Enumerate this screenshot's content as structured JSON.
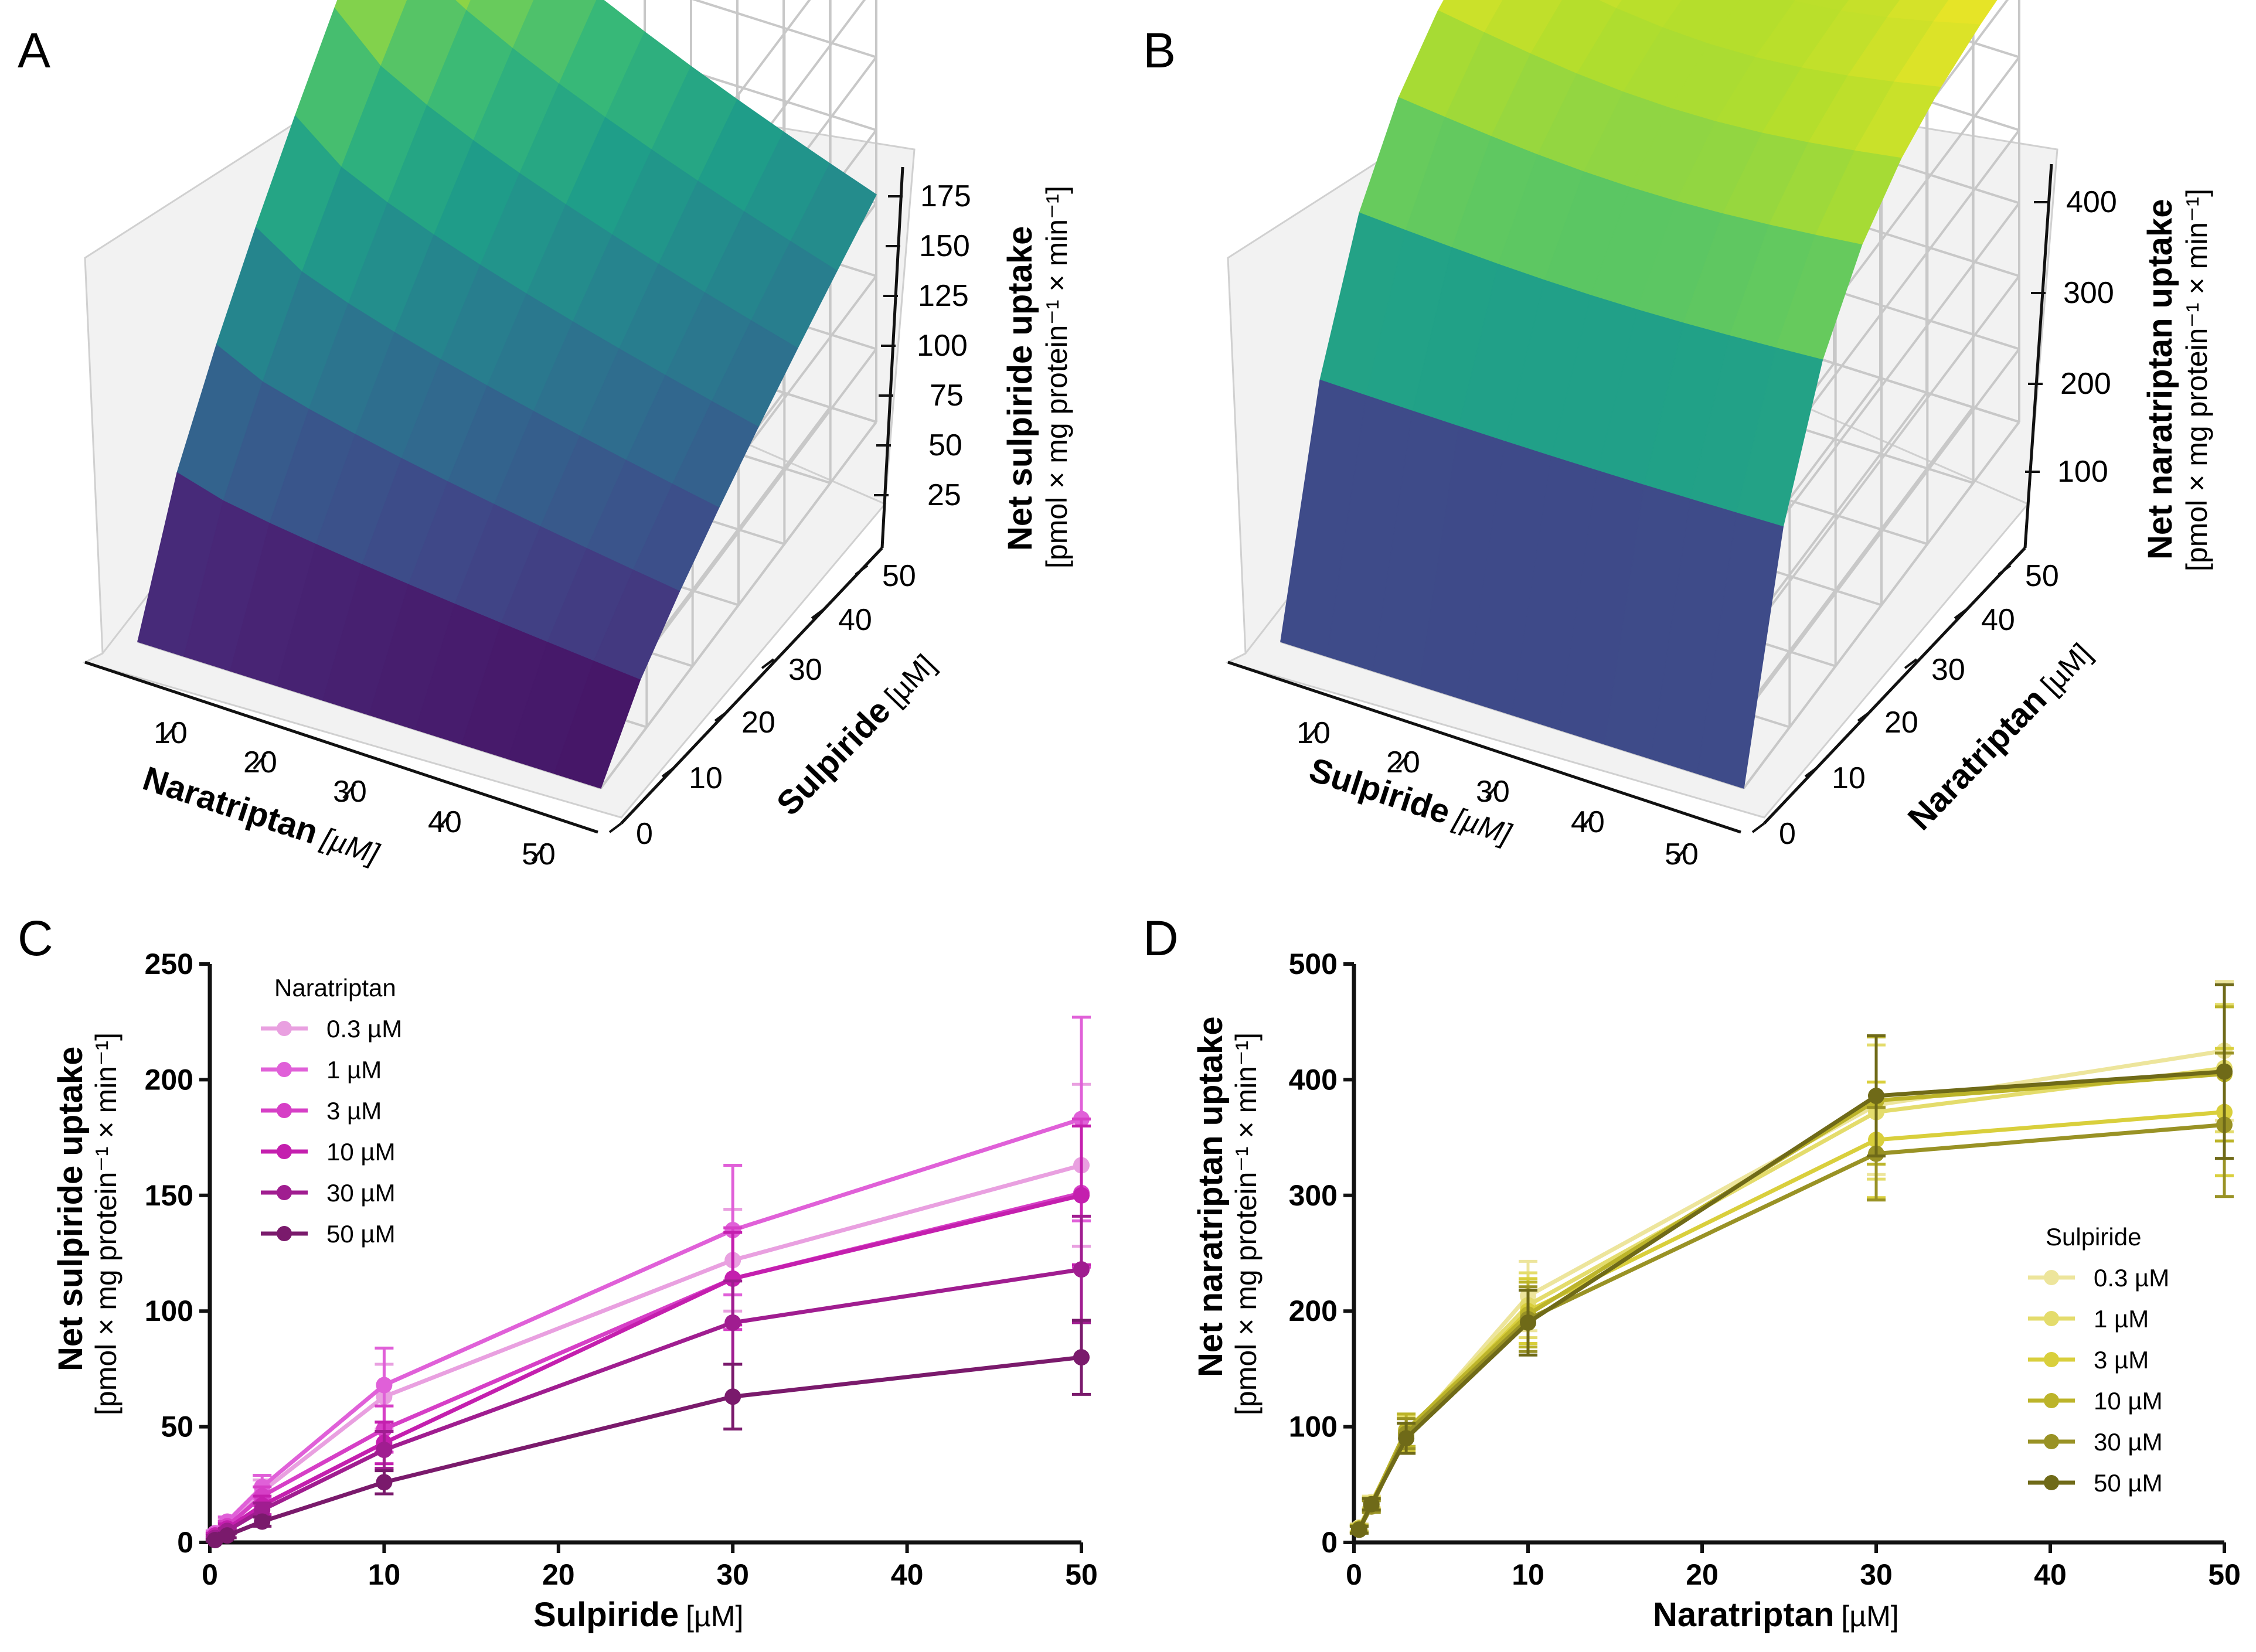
{
  "panels": {
    "A": {
      "letter": "A",
      "ztitle": "Net sulpiride uptake",
      "zunit": "[pmol × mg protein⁻¹ × min⁻¹]",
      "xtitle": "Naratriptan",
      "xunit": "[µM]",
      "ytitle": "Sulpiride",
      "yunit": "[µM]",
      "zticks": [
        "175",
        "150",
        "125",
        "100",
        "75",
        "50",
        "25"
      ],
      "xticks": [
        "10",
        "20",
        "30",
        "40",
        "50"
      ],
      "yticks": [
        "0",
        "10",
        "20",
        "30",
        "40",
        "50"
      ]
    },
    "B": {
      "letter": "B",
      "ztitle": "Net naratriptan uptake",
      "zunit": "[pmol × mg protein⁻¹ × min⁻¹]",
      "xtitle": "Sulpiride",
      "xunit": "[µM]",
      "ytitle": "Naratriptan",
      "yunit": "[µM]",
      "zticks": [
        "400",
        "300",
        "200",
        "100"
      ],
      "xticks": [
        "10",
        "20",
        "30",
        "40",
        "50"
      ],
      "yticks": [
        "0",
        "10",
        "20",
        "30",
        "40",
        "50"
      ]
    },
    "C": {
      "letter": "C",
      "ytitle": "Net sulpiride uptake",
      "yunit": "[pmol × mg protein⁻¹ × min⁻¹]",
      "xtitle": "Sulpiride",
      "xunit": "[µM]",
      "legend_title": "Naratriptan"
    },
    "D": {
      "letter": "D",
      "ytitle": "Net naratriptan uptake",
      "yunit": "[pmol × mg protein⁻¹ × min⁻¹]",
      "xtitle": "Naratriptan",
      "xunit": "[µM]",
      "legend_title": "Sulpiride"
    }
  },
  "chart_data": [
    {
      "type": "surface",
      "panel": "A",
      "x_name": "Naratriptan [µM]",
      "y_name": "Sulpiride [µM]",
      "z_name": "Net sulpiride uptake",
      "zlim": [
        0,
        190
      ],
      "colormap": "viridis"
    },
    {
      "type": "surface",
      "panel": "B",
      "x_name": "Sulpiride [µM]",
      "y_name": "Naratriptan [µM]",
      "z_name": "Net naratriptan uptake",
      "zlim": [
        0,
        430
      ],
      "colormap": "viridis"
    },
    {
      "type": "line",
      "panel": "C",
      "x": [
        0.3,
        1,
        3,
        10,
        30,
        50
      ],
      "xlim": [
        0,
        50
      ],
      "ylim": [
        0,
        250
      ],
      "xticks": [
        0,
        10,
        20,
        30,
        40,
        50
      ],
      "yticks": [
        0,
        50,
        100,
        150,
        200,
        250
      ],
      "legend_position": "top-left",
      "series": [
        {
          "name": "0.3 µM",
          "color": "#e9a0e0",
          "values": [
            3,
            8,
            22,
            63,
            122,
            163
          ],
          "err": [
            1,
            2,
            5,
            14,
            22,
            35
          ]
        },
        {
          "name": "1 µM",
          "color": "#e060d8",
          "values": [
            4,
            9,
            24,
            68,
            135,
            183
          ],
          "err": [
            1,
            2,
            5,
            16,
            28,
            44
          ]
        },
        {
          "name": "3 µM",
          "color": "#d63fc6",
          "values": [
            3,
            7,
            20,
            49,
            114,
            151
          ],
          "err": [
            1,
            2,
            4,
            10,
            22,
            32
          ]
        },
        {
          "name": "10 µM",
          "color": "#c41fae",
          "values": [
            3,
            6,
            16,
            43,
            114,
            150
          ],
          "err": [
            1,
            2,
            4,
            9,
            20,
            30
          ]
        },
        {
          "name": "30 µM",
          "color": "#a01d90",
          "values": [
            2,
            5,
            14,
            40,
            95,
            118
          ],
          "err": [
            1,
            1,
            3,
            8,
            18,
            23
          ]
        },
        {
          "name": "50 µM",
          "color": "#7a1a6c",
          "values": [
            1,
            3,
            9,
            26,
            63,
            80
          ],
          "err": [
            0.5,
            1,
            2,
            5,
            14,
            16
          ]
        }
      ]
    },
    {
      "type": "line",
      "panel": "D",
      "x": [
        0.3,
        1,
        3,
        10,
        30,
        50
      ],
      "xlim": [
        0,
        50
      ],
      "ylim": [
        0,
        500
      ],
      "xticks": [
        0,
        10,
        20,
        30,
        40,
        50
      ],
      "yticks": [
        0,
        100,
        200,
        300,
        400,
        500
      ],
      "legend_position": "bottom-right",
      "series": [
        {
          "name": "0.3 µM",
          "color": "#ede59c",
          "values": [
            13,
            35,
            92,
            213,
            378,
            425
          ],
          "err": [
            3,
            5,
            15,
            30,
            60,
            60
          ]
        },
        {
          "name": "1 µM",
          "color": "#e4dc6c",
          "values": [
            12,
            34,
            95,
            205,
            372,
            410
          ],
          "err": [
            3,
            5,
            14,
            28,
            58,
            55
          ]
        },
        {
          "name": "3 µM",
          "color": "#d9cf3c",
          "values": [
            12,
            32,
            93,
            200,
            348,
            372
          ],
          "err": [
            3,
            5,
            14,
            28,
            50,
            55
          ]
        },
        {
          "name": "10 µM",
          "color": "#bcb42a",
          "values": [
            12,
            33,
            97,
            197,
            382,
            405
          ],
          "err": [
            3,
            5,
            14,
            28,
            55,
            58
          ]
        },
        {
          "name": "30 µM",
          "color": "#999225",
          "values": [
            11,
            31,
            94,
            193,
            336,
            361
          ],
          "err": [
            3,
            5,
            13,
            28,
            40,
            62
          ]
        },
        {
          "name": "50 µM",
          "color": "#6f6a18",
          "values": [
            11,
            33,
            90,
            190,
            386,
            407
          ],
          "err": [
            3,
            5,
            13,
            28,
            52,
            75
          ]
        }
      ]
    }
  ]
}
